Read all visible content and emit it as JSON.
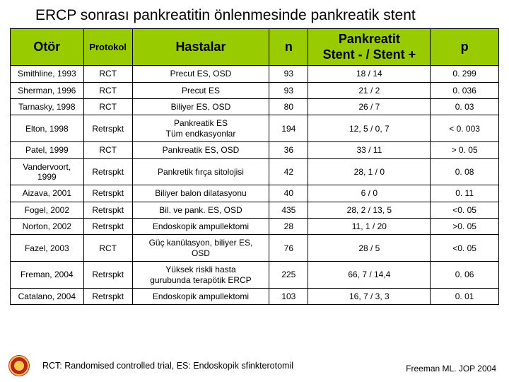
{
  "title": "ERCP sonrası pankreatitin önlenmesinde pankreatik stent",
  "columns": {
    "otor": "Otör",
    "protokol": "Protokol",
    "hastalar": "Hastalar",
    "n": "n",
    "pankreatit": "Pankreatit\nStent - / Stent +",
    "p": "p"
  },
  "rows": [
    {
      "otor": "Smithline, 1993",
      "proto": "RCT",
      "hasta": "Precut ES, OSD",
      "n": "93",
      "pank": "18 / 14",
      "p": "0. 299"
    },
    {
      "otor": "Sherman, 1996",
      "proto": "RCT",
      "hasta": "Precut ES",
      "n": "93",
      "pank": "21 / 2",
      "p": "0. 036"
    },
    {
      "otor": "Tarnasky, 1998",
      "proto": "RCT",
      "hasta": "Biliyer ES, OSD",
      "n": "80",
      "pank": "26 / 7",
      "p": "0. 03"
    },
    {
      "otor": "Elton, 1998",
      "proto": "Retrspkt",
      "hasta": "Pankreatik ES\nTüm endkasyonlar",
      "n": "194",
      "pank": "12, 5 / 0, 7",
      "p": "< 0. 003"
    },
    {
      "otor": "Patel, 1999",
      "proto": "RCT",
      "hasta": "Pankreatik ES, OSD",
      "n": "36",
      "pank": "33 / 11",
      "p": "> 0. 05"
    },
    {
      "otor": "Vandervoort, 1999",
      "proto": "Retrspkt",
      "hasta": "Pankretik fırça sitolojisi",
      "n": "42",
      "pank": "28, 1 / 0",
      "p": "0. 08"
    },
    {
      "otor": "Aizava, 2001",
      "proto": "Retrspkt",
      "hasta": "Biliyer balon dilatasyonu",
      "n": "40",
      "pank": "6 / 0",
      "p": "0. 11"
    },
    {
      "otor": "Fogel, 2002",
      "proto": "Retrspkt",
      "hasta": "Bil. ve pank. ES, OSD",
      "n": "435",
      "pank": "28, 2 / 13, 5",
      "p": "<0. 05"
    },
    {
      "otor": "Norton, 2002",
      "proto": "Retrspkt",
      "hasta": "Endoskopik ampullektomi",
      "n": "28",
      "pank": "11, 1 / 20",
      "p": ">0. 05"
    },
    {
      "otor": "Fazel, 2003",
      "proto": "RCT",
      "hasta": "Güç kanülasyon, biliyer ES,\nOSD",
      "n": "76",
      "pank": "28 / 5",
      "p": "<0. 05"
    },
    {
      "otor": "Freman, 2004",
      "proto": "Retrspkt",
      "hasta": "Yüksek riskli hasta\ngurubunda terapötik ERCP",
      "n": "225",
      "pank": "66, 7 / 14,4",
      "p": "0. 06"
    },
    {
      "otor": "Catalano, 2004",
      "proto": "Retrspkt",
      "hasta": "Endoskopik ampullektomi",
      "n": "103",
      "pank": "16, 7 / 3, 3",
      "p": "0. 01"
    }
  ],
  "footer": {
    "left": "RCT: Randomised controlled trial,   ES: Endoskopik sfinkterotomil",
    "right": "Freeman ML. JOP 2004"
  },
  "style": {
    "header_bg": "#99cc00",
    "border_color": "#000000",
    "title_color": "#000000",
    "title_fontsize": 21,
    "header_fontsize_big": 18,
    "header_fontsize_small": 13,
    "cell_fontsize": 12,
    "footer_fontsize": 12.5,
    "col_widths_pct": [
      15,
      10,
      28,
      8,
      25,
      14
    ]
  }
}
